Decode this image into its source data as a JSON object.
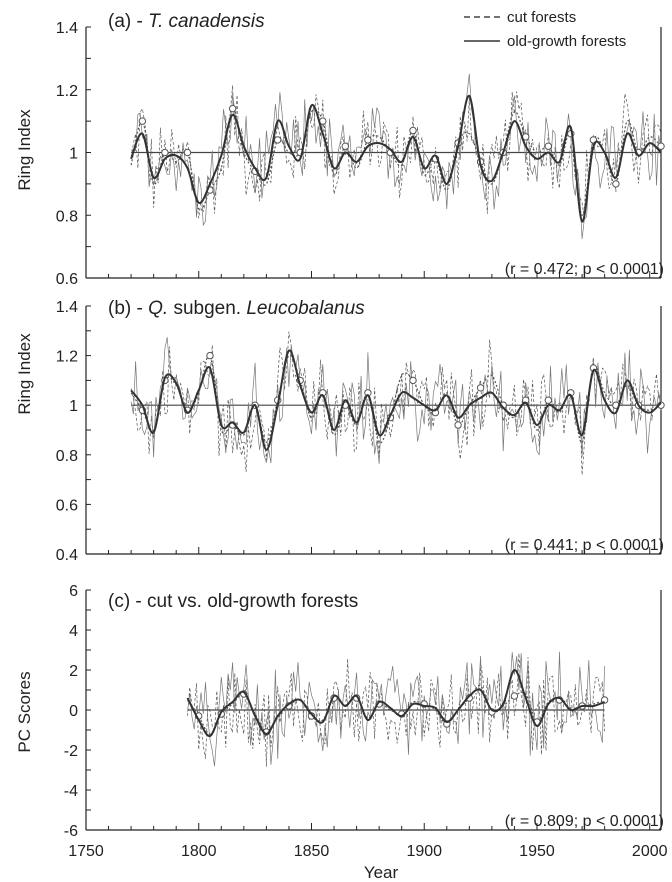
{
  "chart_data": [
    {
      "type": "line",
      "panel_label": "(a) - ",
      "title_italic": "T. canadensis",
      "ylabel": "Ring Index",
      "ylim": [
        0.6,
        1.4
      ],
      "yticks": [
        "0.6",
        "0.8",
        "1",
        "1.2",
        "1.4"
      ],
      "baseline": 1,
      "stat_text": "(r = 0.472; p < 0.0001)",
      "x_range": [
        1770,
        2005
      ],
      "series": [
        {
          "name": "cut forests",
          "style": "dashed",
          "x_start": 1770,
          "step": 5,
          "values": [
            0.96,
            1.1,
            0.9,
            1.0,
            0.97,
            1.0,
            0.82,
            0.88,
            0.95,
            1.14,
            1.0,
            0.94,
            0.9,
            1.04,
            1.0,
            1.0,
            1.13,
            1.1,
            0.93,
            1.02,
            0.95,
            1.04,
            1.05,
            1.0,
            0.96,
            1.07,
            0.93,
            0.98,
            0.88,
            1.03,
            1.06,
            0.97,
            0.9,
            1.0,
            1.13,
            1.05,
            1.0,
            1.02,
            0.96,
            1.06,
            0.8,
            1.04,
            1.0,
            0.9,
            1.1,
            1.0,
            1.05,
            1.02
          ]
        },
        {
          "name": "old-growth forests",
          "style": "solid",
          "x_start": 1770,
          "step": 5,
          "values": [
            0.98,
            1.06,
            0.92,
            0.98,
            0.99,
            0.95,
            0.84,
            0.9,
            0.99,
            1.12,
            1.02,
            0.95,
            0.92,
            1.1,
            1.02,
            0.98,
            1.15,
            1.06,
            0.95,
            1.0,
            0.97,
            1.02,
            1.03,
            1.01,
            0.97,
            1.05,
            0.95,
            0.99,
            0.9,
            1.02,
            1.18,
            0.96,
            0.91,
            1.0,
            1.1,
            1.02,
            0.98,
            1.0,
            0.97,
            1.08,
            0.78,
            1.02,
            1.0,
            0.92,
            1.06,
            0.99,
            1.03,
            1.0
          ]
        }
      ]
    },
    {
      "type": "line",
      "panel_label": "(b) - ",
      "title_italic_1": "Q.",
      "title_middle": " subgen. ",
      "title_italic_2": "Leucobalanus",
      "ylabel": "Ring Index",
      "ylim": [
        0.4,
        1.4
      ],
      "yticks": [
        "0.4",
        "0.6",
        "0.8",
        "1",
        "1.2",
        "1.4"
      ],
      "baseline": 1,
      "stat_text": "(r = 0.441; p < 0.0001)",
      "x_range": [
        1770,
        2005
      ],
      "series": [
        {
          "name": "cut forests",
          "style": "dashed",
          "x_start": 1770,
          "step": 5,
          "values": [
            1.05,
            0.98,
            0.9,
            1.1,
            1.08,
            0.98,
            1.05,
            1.2,
            0.9,
            0.92,
            0.88,
            1.0,
            0.85,
            1.02,
            1.2,
            1.1,
            0.95,
            1.05,
            0.88,
            1.0,
            0.92,
            1.05,
            0.85,
            0.95,
            1.12,
            1.1,
            1.0,
            0.97,
            1.05,
            0.92,
            1.0,
            1.07,
            1.12,
            1.0,
            0.95,
            1.02,
            0.9,
            1.02,
            0.97,
            1.05,
            0.85,
            1.15,
            1.05,
            1.0,
            1.08,
            1.0,
            0.98,
            1.0
          ]
        },
        {
          "name": "old-growth forests",
          "style": "solid",
          "x_start": 1770,
          "step": 5,
          "values": [
            1.06,
            1.0,
            0.89,
            1.11,
            1.09,
            0.97,
            1.06,
            1.15,
            0.92,
            0.93,
            0.89,
            1.0,
            0.82,
            1.0,
            1.22,
            1.08,
            0.97,
            1.04,
            0.9,
            1.02,
            0.93,
            1.04,
            0.88,
            0.96,
            1.05,
            1.03,
            1.0,
            0.98,
            1.04,
            0.95,
            1.0,
            1.03,
            1.05,
            0.99,
            0.96,
            1.01,
            0.92,
            1.0,
            0.98,
            1.04,
            0.88,
            1.14,
            1.02,
            0.97,
            1.1,
            1.0,
            0.97,
            1.01
          ]
        }
      ]
    },
    {
      "type": "line",
      "panel_label": "(c) - cut vs. old-growth forests",
      "ylabel": "PC Scores",
      "ylim": [
        -6,
        6
      ],
      "yticks": [
        "-6",
        "-4",
        "-2",
        "0",
        "2",
        "4",
        "6"
      ],
      "baseline": 0,
      "stat_text": "(r = 0.809; p < 0.0001)",
      "xlabel": "Year",
      "xticks": [
        "1750",
        "1800",
        "1850",
        "1900",
        "1950",
        "2000"
      ],
      "xlim": [
        1750,
        2005
      ],
      "x_range": [
        1795,
        1980
      ],
      "series": [
        {
          "name": "cut forests",
          "style": "dashed",
          "x_start": 1795,
          "step": 5,
          "values": [
            0.5,
            -0.3,
            -1.2,
            -0.2,
            0.3,
            0.8,
            -0.2,
            -1.1,
            -0.4,
            0.2,
            0.5,
            -0.3,
            -0.5,
            0.6,
            0.2,
            0.6,
            -0.4,
            0.3,
            0.0,
            -0.2,
            0.4,
            0.3,
            0.0,
            -0.7,
            0.0,
            0.6,
            1.2,
            -0.1,
            0.2,
            0.7,
            0.8,
            -0.6,
            0.4,
            0.5,
            0.1,
            0.2,
            0.3,
            0.5
          ]
        },
        {
          "name": "old-growth forests",
          "style": "solid",
          "x_start": 1795,
          "step": 5,
          "values": [
            0.6,
            -0.5,
            -1.3,
            -0.1,
            0.4,
            0.9,
            -0.3,
            -1.2,
            -0.3,
            0.3,
            0.5,
            -0.2,
            -0.6,
            0.7,
            0.2,
            0.7,
            -0.5,
            0.4,
            0.1,
            -0.3,
            0.3,
            0.2,
            0.1,
            -0.6,
            0.0,
            0.7,
            1.0,
            0.0,
            0.3,
            2.0,
            0.6,
            -0.8,
            0.3,
            0.6,
            0.0,
            0.2,
            0.2,
            0.4
          ]
        }
      ]
    }
  ],
  "legend": {
    "cut_label": "cut forests",
    "old_label": "old-growth forests",
    "placement": "top-right"
  },
  "colors": {
    "cut": "#444444",
    "old": "#333333",
    "axis": "#222222"
  }
}
